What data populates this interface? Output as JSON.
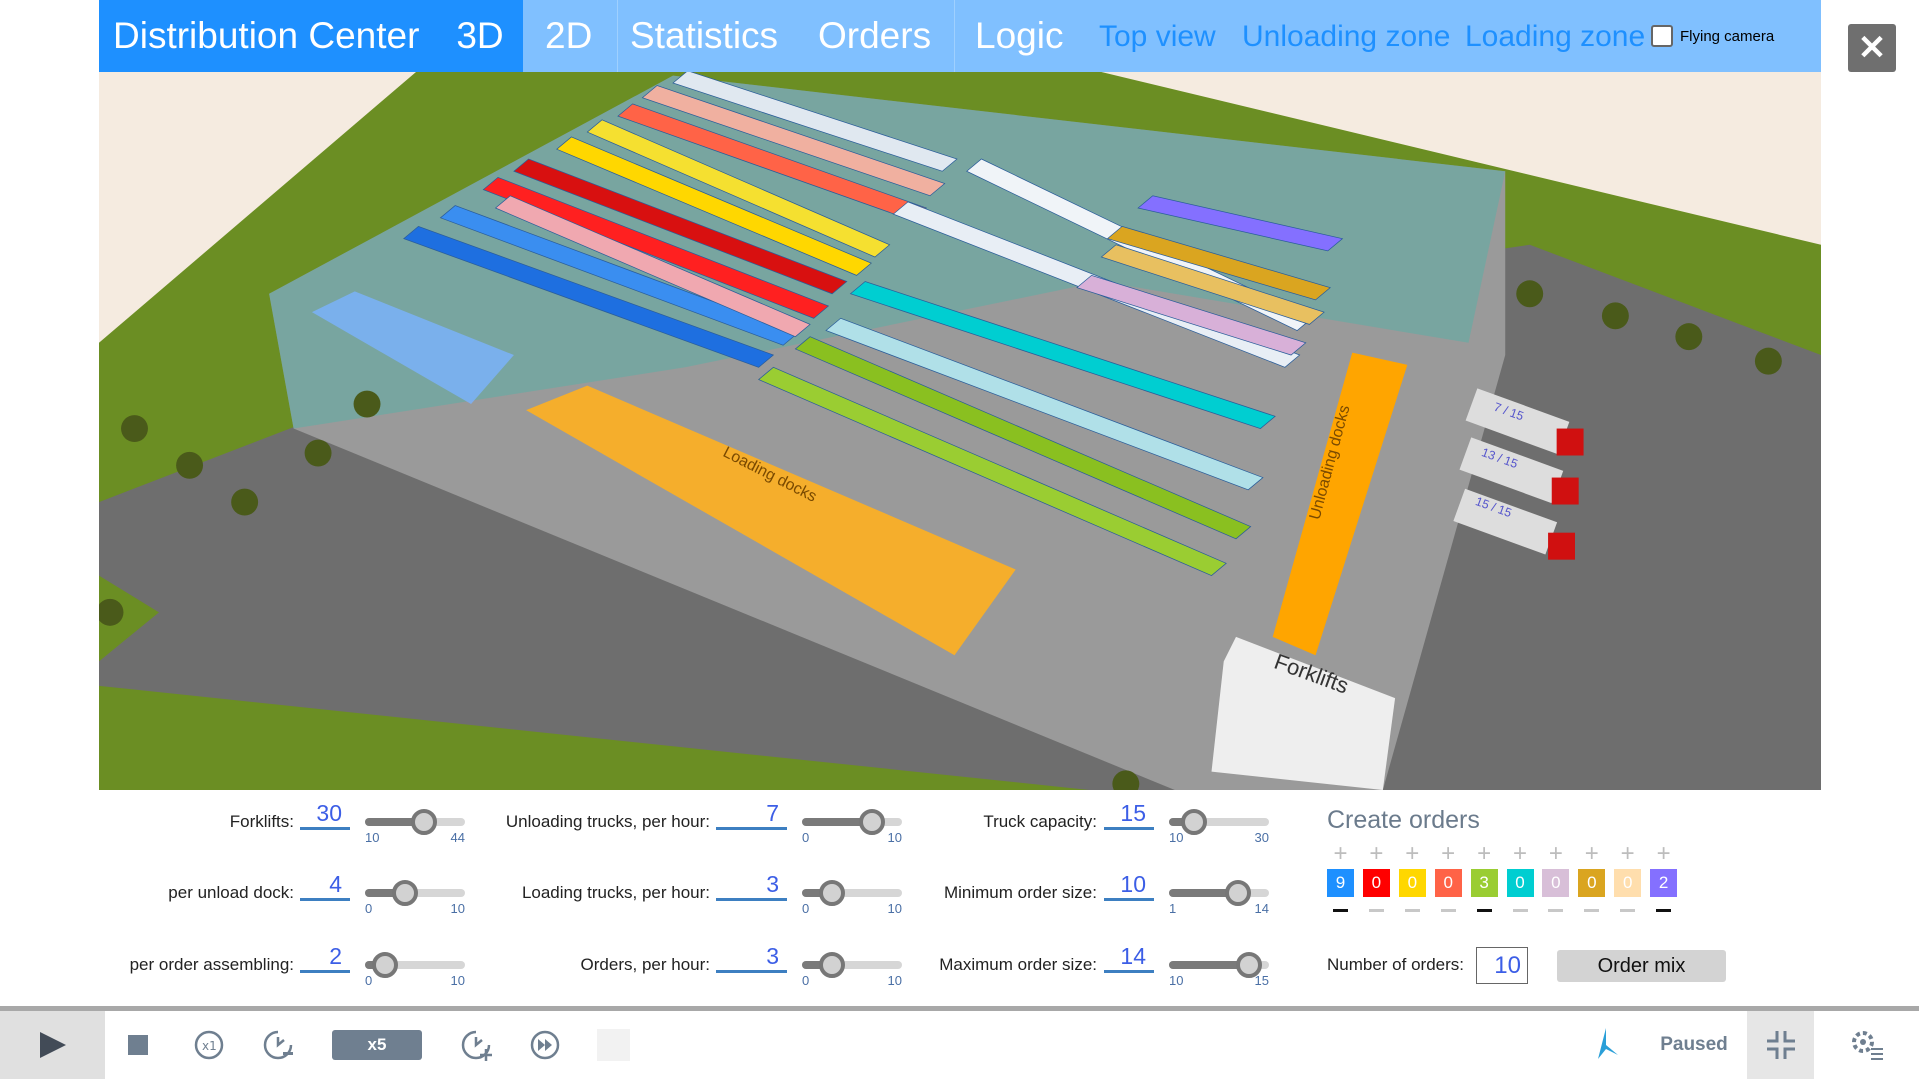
{
  "nav": {
    "title": "Distribution Center",
    "tabs": [
      {
        "label": "3D",
        "active": true
      },
      {
        "label": "2D"
      },
      {
        "label": "Statistics"
      },
      {
        "label": "Orders"
      },
      {
        "label": "Logic"
      }
    ],
    "links": [
      "Top view",
      "Unloading zone",
      "Loading zone"
    ],
    "flying_camera": {
      "label": "Flying camera",
      "checked": false
    },
    "close": "✕"
  },
  "scene": {
    "loading_docks": "Loading docks",
    "unloading_docks": "Unloading docks",
    "forklifts": "Forklifts",
    "truck_loads": [
      "7 / 15",
      "13 / 15",
      "15 / 15"
    ]
  },
  "controls": [
    {
      "label": "Forklifts:",
      "value": "30",
      "min": "10",
      "max": "44",
      "v": 30
    },
    {
      "label": "per unload dock:",
      "value": "4",
      "min": "0",
      "max": "10",
      "v": 4
    },
    {
      "label": "per order assembling:",
      "value": "2",
      "min": "0",
      "max": "10",
      "v": 2
    },
    {
      "label": "Unloading trucks, per hour:",
      "value": "7",
      "min": "0",
      "max": "10",
      "v": 7
    },
    {
      "label": "Loading trucks, per hour:",
      "value": "3",
      "min": "0",
      "max": "10",
      "v": 3
    },
    {
      "label": "Orders, per hour:",
      "value": "3",
      "min": "0",
      "max": "10",
      "v": 3
    },
    {
      "label": "Truck capacity:",
      "value": "15",
      "min": "10",
      "max": "30",
      "v": 15
    },
    {
      "label": "Minimum order size:",
      "value": "10",
      "min": "1",
      "max": "14",
      "v": 10
    },
    {
      "label": "Maximum order size:",
      "value": "14",
      "min": "10",
      "max": "15",
      "v": 14
    }
  ],
  "orders": {
    "title": "Create orders",
    "items": [
      {
        "count": "9",
        "color": "#1e90ff"
      },
      {
        "count": "0",
        "color": "#ff0000"
      },
      {
        "count": "0",
        "color": "#ffd700"
      },
      {
        "count": "0",
        "color": "#ff6347"
      },
      {
        "count": "3",
        "color": "#9acd32"
      },
      {
        "count": "0",
        "color": "#00ced1"
      },
      {
        "count": "0",
        "color": "#d8bfd8"
      },
      {
        "count": "0",
        "color": "#daa520"
      },
      {
        "count": "0",
        "color": "#ffdead"
      },
      {
        "count": "2",
        "color": "#8470ff"
      }
    ],
    "plus": "+",
    "number_label": "Number of orders:",
    "number_value": "10",
    "mix_button": "Order mix"
  },
  "toolbar": {
    "speed": "x5",
    "status": "Paused"
  }
}
